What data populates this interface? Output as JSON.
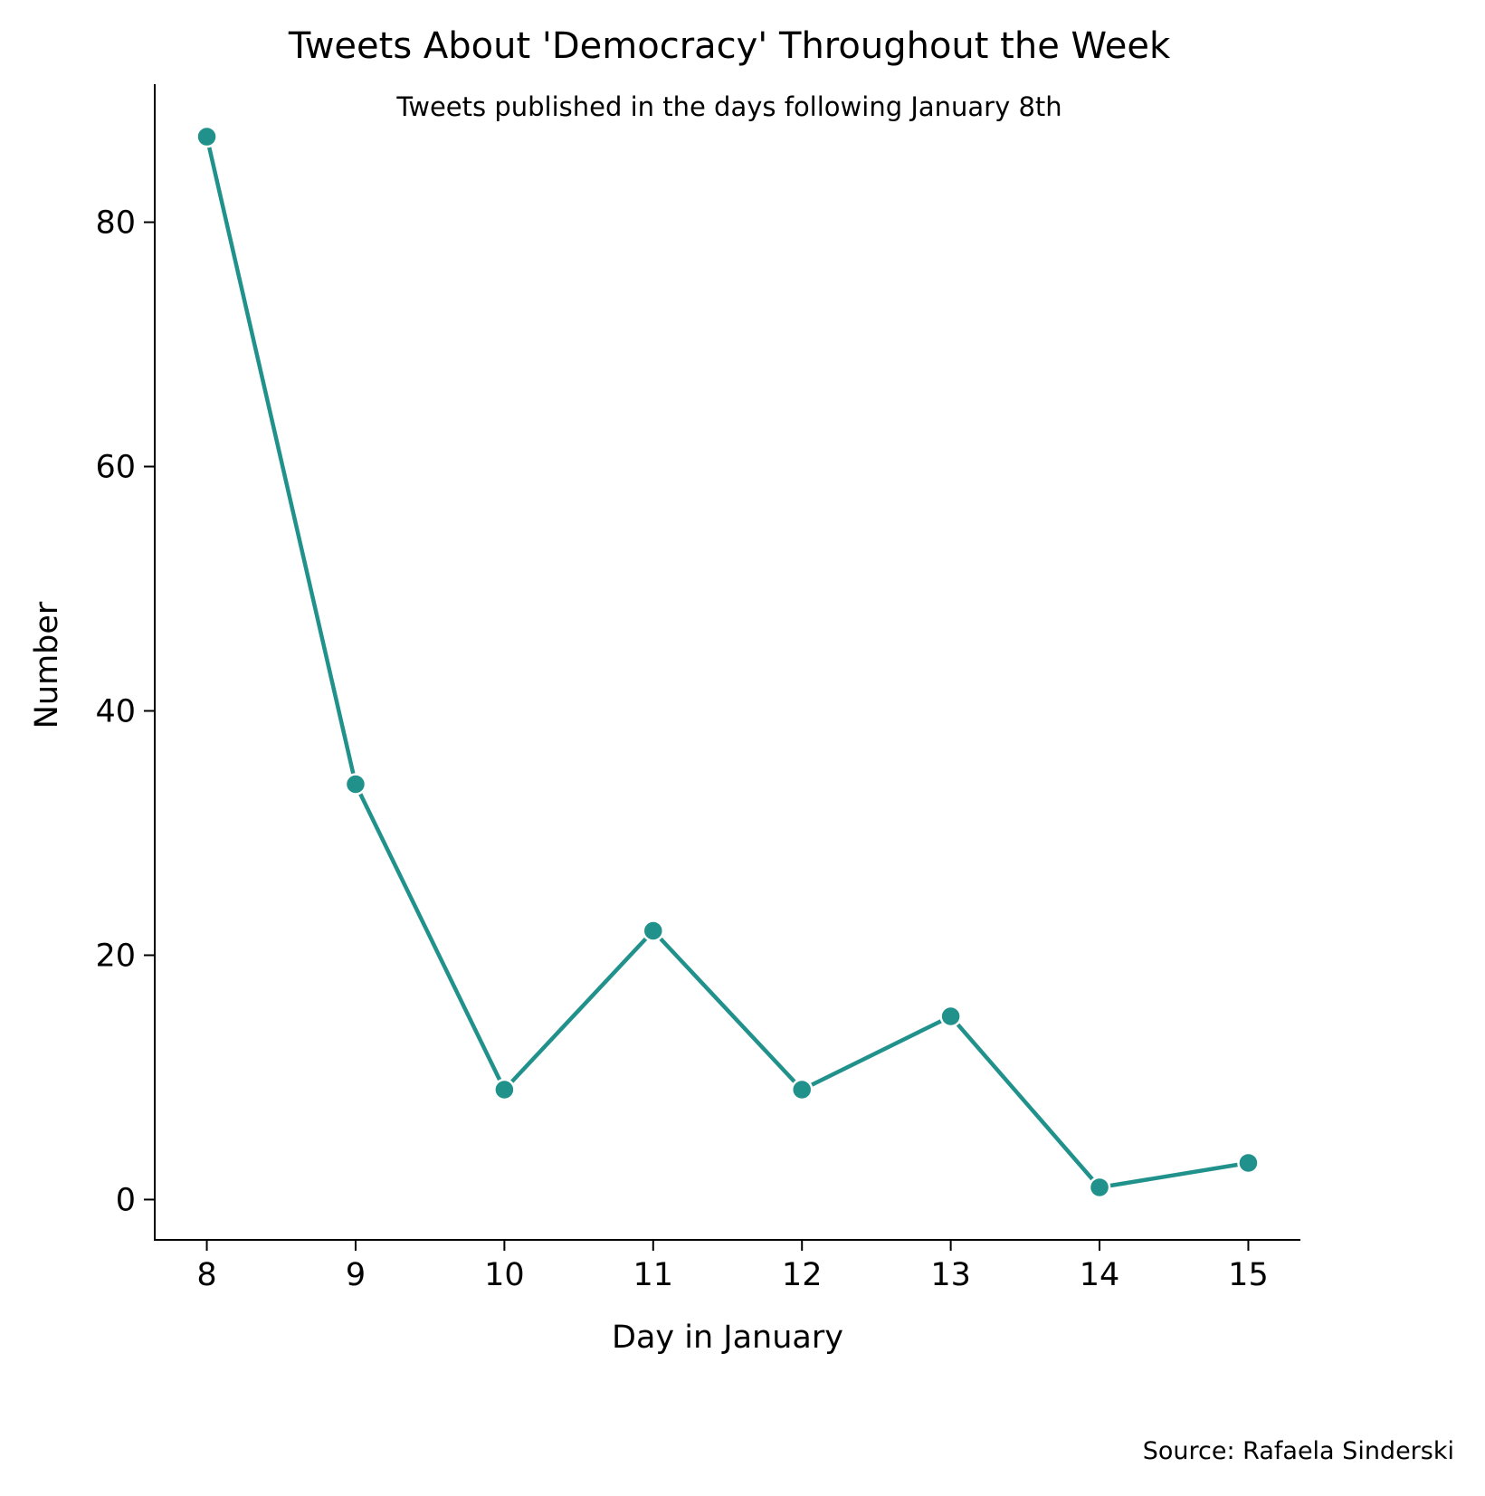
{
  "chart_data": {
    "type": "line",
    "title": "Tweets About 'Democracy' Throughout the Week",
    "subtitle": "Tweets published in the days following January 8th",
    "xlabel": "Day in January",
    "ylabel": "Number",
    "source": "Source: Rafaela Sinderski",
    "x": [
      8,
      9,
      10,
      11,
      12,
      13,
      14,
      15
    ],
    "x_tick_labels": [
      "8",
      "9",
      "10",
      "11",
      "12",
      "13",
      "14",
      "15"
    ],
    "y_ticks": [
      0,
      20,
      40,
      60,
      80
    ],
    "y_tick_labels": [
      "0",
      "20",
      "40",
      "60",
      "80"
    ],
    "xlim": [
      7.65,
      15.35
    ],
    "ylim": [
      -3.3,
      91.3
    ],
    "series": [
      {
        "values": [
          87,
          34,
          9,
          22,
          9,
          15,
          1,
          3
        ],
        "color": "#21918c"
      }
    ],
    "grid": false,
    "legend": "none",
    "marker": "circle"
  }
}
